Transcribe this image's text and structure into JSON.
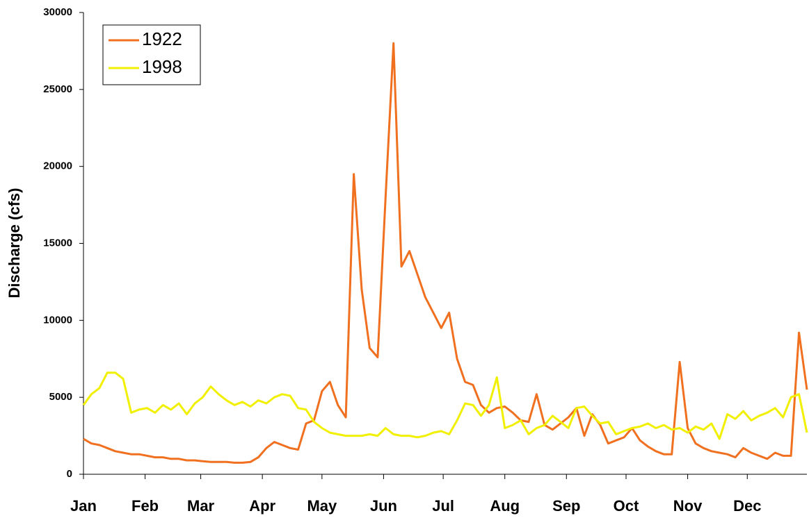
{
  "chart_data": {
    "type": "line",
    "y_label": "Discharge (cfs)",
    "x": [
      1,
      5,
      9,
      13,
      17,
      21,
      25,
      29,
      33,
      37,
      41,
      45,
      49,
      53,
      57,
      61,
      65,
      69,
      73,
      77,
      81,
      85,
      89,
      93,
      97,
      101,
      105,
      109,
      113,
      117,
      121,
      125,
      129,
      133,
      137,
      141,
      145,
      149,
      153,
      157,
      161,
      165,
      169,
      173,
      177,
      181,
      185,
      189,
      193,
      197,
      201,
      205,
      209,
      213,
      217,
      221,
      225,
      229,
      233,
      237,
      241,
      245,
      249,
      253,
      257,
      261,
      265,
      269,
      273,
      277,
      281,
      285,
      289,
      293,
      297,
      301,
      305,
      309,
      313,
      317,
      321,
      325,
      329,
      333,
      337,
      341,
      345,
      349,
      353,
      357,
      361,
      365
    ],
    "series": [
      {
        "name": "1922",
        "color": "#f07020",
        "values": [
          2300,
          2000,
          1900,
          1700,
          1500,
          1400,
          1300,
          1300,
          1200,
          1100,
          1100,
          1000,
          1000,
          900,
          900,
          850,
          800,
          800,
          800,
          750,
          750,
          800,
          1100,
          1700,
          2100,
          1900,
          1700,
          1600,
          3300,
          3500,
          5400,
          6000,
          4500,
          3700,
          19500,
          12000,
          8200,
          7600,
          18000,
          28000,
          13500,
          14500,
          13000,
          11500,
          10500,
          9500,
          10500,
          7500,
          6000,
          5800,
          4500,
          4000,
          4300,
          4400,
          4000,
          3500,
          3400,
          5200,
          3200,
          2900,
          3300,
          3700,
          4300,
          2500,
          3900,
          3200,
          2000,
          2200,
          2400,
          3000,
          2200,
          1800,
          1500,
          1300,
          1300,
          7300,
          3000,
          2000,
          1700,
          1500,
          1400,
          1300,
          1100,
          1700,
          1400,
          1200,
          1000,
          1400,
          1200,
          1200,
          9200,
          5500
        ]
      },
      {
        "name": "1998",
        "color": "#f0f000",
        "values": [
          4500,
          5200,
          5600,
          6600,
          6600,
          6200,
          4000,
          4200,
          4300,
          4000,
          4500,
          4200,
          4600,
          3900,
          4600,
          5000,
          5700,
          5200,
          4800,
          4500,
          4700,
          4400,
          4800,
          4600,
          5000,
          5200,
          5100,
          4300,
          4200,
          3400,
          3000,
          2700,
          2600,
          2500,
          2500,
          2500,
          2600,
          2500,
          3000,
          2600,
          2500,
          2500,
          2400,
          2500,
          2700,
          2800,
          2600,
          3500,
          4600,
          4500,
          3800,
          4500,
          6300,
          3000,
          3200,
          3500,
          2600,
          3000,
          3200,
          3800,
          3400,
          3000,
          4300,
          4400,
          3800,
          3300,
          3400,
          2600,
          2800,
          3000,
          3100,
          3300,
          3000,
          3200,
          2900,
          3000,
          2700,
          3100,
          2900,
          3300,
          2300,
          3900,
          3600,
          4100,
          3500,
          3800,
          4000,
          4300,
          3700,
          5000,
          5200,
          2700
        ]
      }
    ],
    "xlim": [
      1,
      365
    ],
    "xticks": [
      {
        "value": 1,
        "label": "Jan"
      },
      {
        "value": 32,
        "label": "Feb"
      },
      {
        "value": 60,
        "label": "Mar"
      },
      {
        "value": 91,
        "label": "Apr"
      },
      {
        "value": 121,
        "label": "May"
      },
      {
        "value": 152,
        "label": "Jun"
      },
      {
        "value": 182,
        "label": "Jul"
      },
      {
        "value": 213,
        "label": "Aug"
      },
      {
        "value": 244,
        "label": "Sep"
      },
      {
        "value": 274,
        "label": "Oct"
      },
      {
        "value": 305,
        "label": "Nov"
      },
      {
        "value": 335,
        "label": "Dec"
      }
    ],
    "ylim": [
      0,
      30000
    ],
    "yticks": [
      0,
      5000,
      10000,
      15000,
      20000,
      25000,
      30000
    ],
    "legend": "top-left"
  }
}
